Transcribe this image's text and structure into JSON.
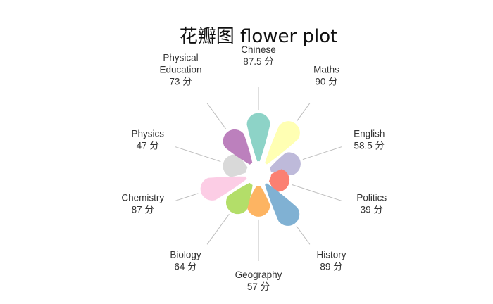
{
  "chart_data": {
    "type": "pie",
    "subtype": "flower",
    "title": "花瓣图 flower plot",
    "unit": "分",
    "ylim": [
      0,
      100
    ],
    "categories": [
      "Chinese",
      "Maths",
      "English",
      "Politics",
      "History",
      "Geography",
      "Biology",
      "Chemistry",
      "Physics",
      "Physical Education"
    ],
    "labels": [
      [
        "Chinese"
      ],
      [
        "Maths"
      ],
      [
        "English"
      ],
      [
        "Politics"
      ],
      [
        "History"
      ],
      [
        "Geography"
      ],
      [
        "Biology"
      ],
      [
        "Chemistry"
      ],
      [
        "Physics"
      ],
      [
        "Physical",
        "Education"
      ]
    ],
    "value_labels": [
      "87.5 分",
      "90 分",
      "58.5 分",
      "39 分",
      "89 分",
      "57 分",
      "64 分",
      "87 分",
      "47 分",
      "73 分"
    ],
    "values": [
      87.5,
      90,
      58.5,
      39,
      89,
      57,
      64,
      87,
      47,
      73
    ],
    "colors": [
      "#8dd3c7",
      "#ffffb3",
      "#bebada",
      "#fb8072",
      "#80b1d3",
      "#fdb462",
      "#b3de69",
      "#fccde5",
      "#d9d9d9",
      "#bc80bd"
    ]
  }
}
